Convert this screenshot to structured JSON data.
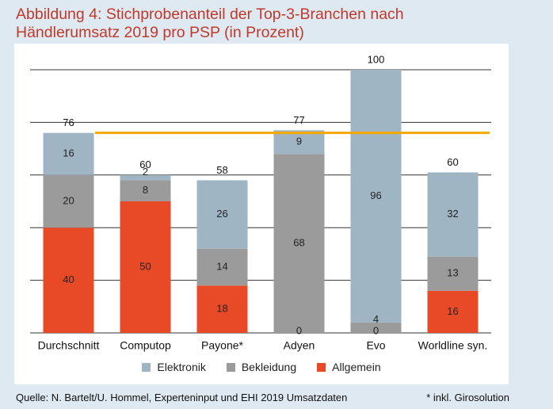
{
  "title_line1": "Abbildung 4: Stichprobenanteil der Top-3-Branchen nach",
  "title_line2": "Händlerumsatz 2019 pro PSP (in Prozent)",
  "source": "Quelle: N. Bartelt/U. Hommel, Experteninput und EHI 2019 Umsatzdaten",
  "footnote": "* inkl. Girosolution",
  "colors": {
    "Elektronik": "#9fb5c4",
    "Bekleidung": "#9b9b9b",
    "Allgemein": "#e84a27",
    "reference_line": "#f5a800",
    "grid": "#333333"
  },
  "chart_data": {
    "type": "bar",
    "stacked": true,
    "title": "Stichprobenanteil der Top-3-Branchen nach Händlerumsatz 2019 pro PSP (in Prozent)",
    "categories": [
      "Durchschnitt",
      "Computop",
      "Payone*",
      "Adyen",
      "Evo",
      "Worldline syn."
    ],
    "series": [
      {
        "name": "Allgemein",
        "values": [
          40,
          50,
          18,
          0,
          0,
          16
        ]
      },
      {
        "name": "Bekleidung",
        "values": [
          20,
          8,
          14,
          68,
          4,
          13
        ]
      },
      {
        "name": "Elektronik",
        "values": [
          16,
          2,
          26,
          9,
          96,
          32
        ]
      }
    ],
    "segment_labels": [
      [
        "40",
        "20",
        "16"
      ],
      [
        "50",
        "8",
        "2"
      ],
      [
        "18",
        "14",
        "26"
      ],
      [
        "0",
        "68",
        "9"
      ],
      [
        "0",
        "4",
        "96"
      ],
      [
        "16",
        "13",
        "32"
      ]
    ],
    "totals": [
      "76",
      "60",
      "58",
      "77",
      "100",
      "60"
    ],
    "reference_line": 76,
    "ylim": [
      0,
      100
    ],
    "gridlines": [
      0,
      20,
      40,
      60,
      80,
      100
    ],
    "legend": [
      "Elektronik",
      "Bekleidung",
      "Allgemein"
    ],
    "legend_position": "bottom",
    "xlabel": "",
    "ylabel": ""
  }
}
